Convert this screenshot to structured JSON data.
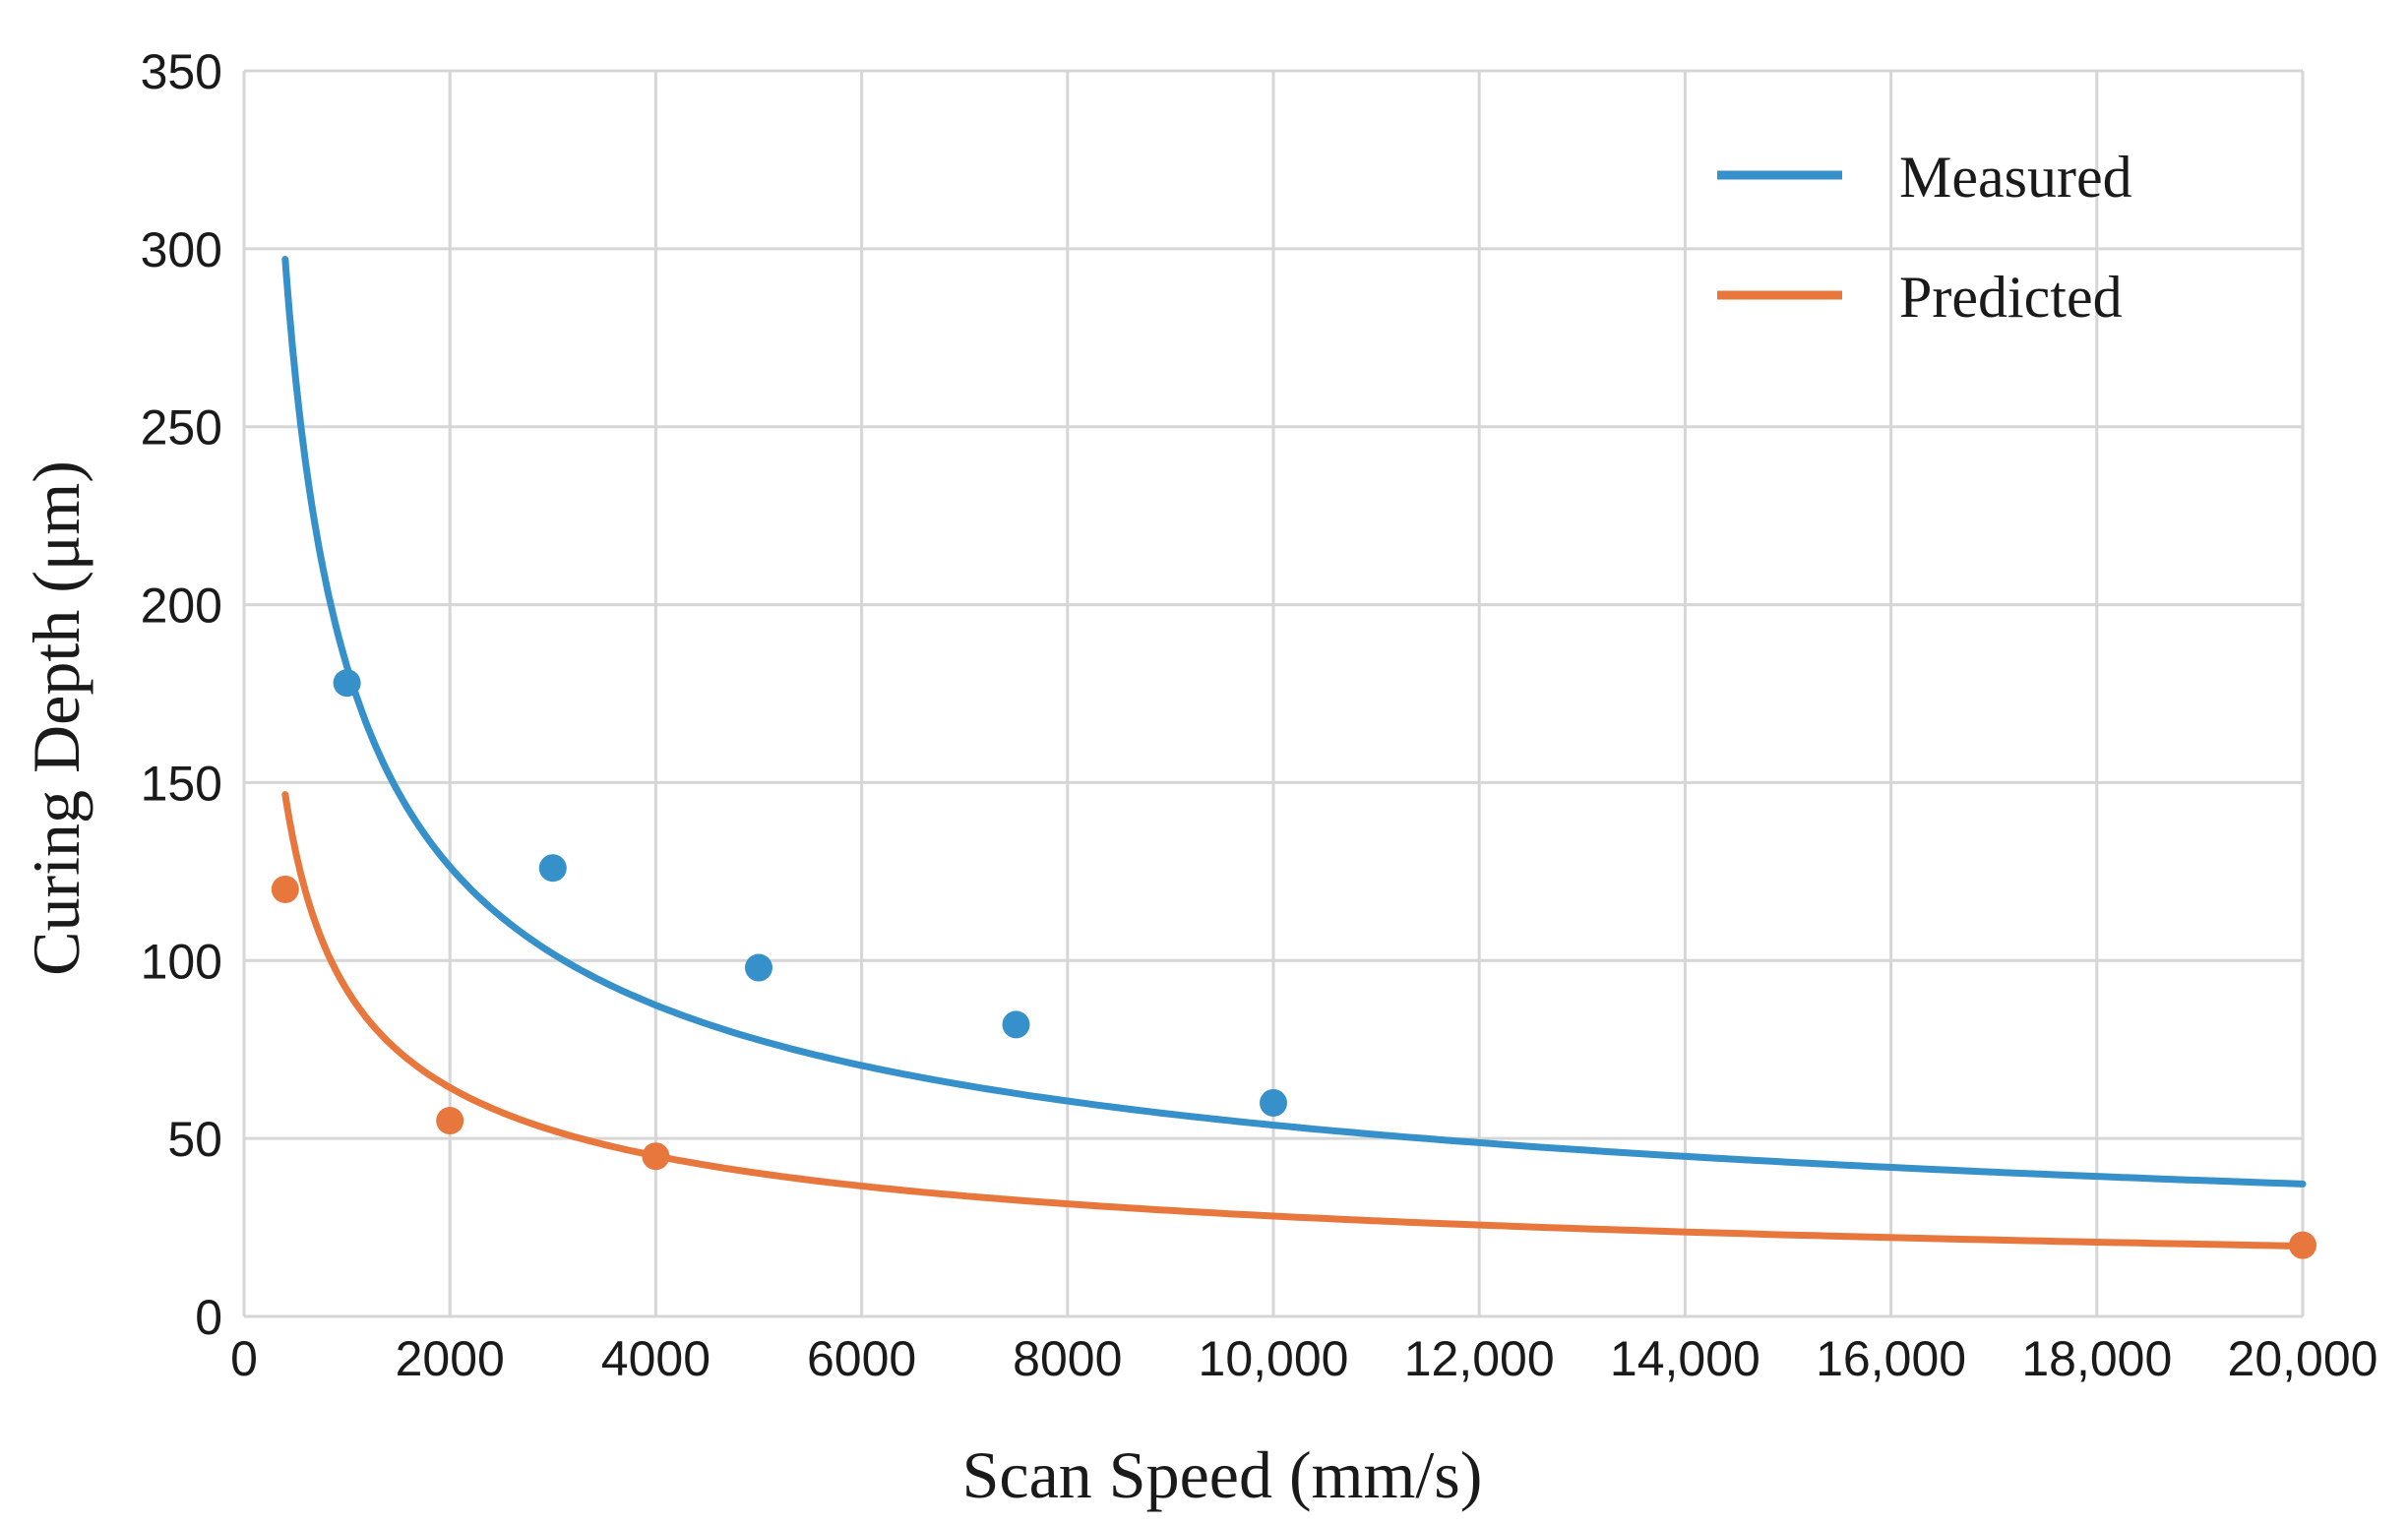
{
  "chart_data": {
    "type": "line",
    "title": "",
    "xlabel": "Scan Speed (mm/s)",
    "ylabel": "Curing Depth (μm)",
    "xlim": [
      0,
      20000
    ],
    "ylim": [
      0,
      350
    ],
    "x_ticks": [
      0,
      2000,
      4000,
      6000,
      8000,
      10000,
      12000,
      14000,
      16000,
      18000,
      20000
    ],
    "x_tick_labels": [
      "0",
      "2000",
      "4000",
      "6000",
      "8000",
      "10,000",
      "12,000",
      "14,000",
      "16,000",
      "18,000",
      "20,000"
    ],
    "y_ticks": [
      0,
      50,
      100,
      150,
      200,
      250,
      300,
      350
    ],
    "y_tick_labels": [
      "0",
      "50",
      "100",
      "150",
      "200",
      "250",
      "300",
      "350"
    ],
    "grid": true,
    "legend_position": "top-right",
    "series": [
      {
        "name": "Measured",
        "color": "#3690c9",
        "points": [
          {
            "x": 1000,
            "y": 178
          },
          {
            "x": 3000,
            "y": 126
          },
          {
            "x": 5000,
            "y": 98
          },
          {
            "x": 7500,
            "y": 82
          },
          {
            "x": 10000,
            "y": 60
          }
        ],
        "fit": {
          "model": "power",
          "a": 7153,
          "b": -0.531,
          "x_start": 400,
          "x_end": 20000
        }
      },
      {
        "name": "Predicted",
        "color": "#e8773d",
        "points": [
          {
            "x": 400,
            "y": 120
          },
          {
            "x": 2000,
            "y": 55
          },
          {
            "x": 4000,
            "y": 45
          },
          {
            "x": 20000,
            "y": 20
          }
        ],
        "fit": {
          "model": "power",
          "a": 3153,
          "b": -0.5121,
          "x_start": 400,
          "x_end": 20000
        }
      }
    ]
  }
}
